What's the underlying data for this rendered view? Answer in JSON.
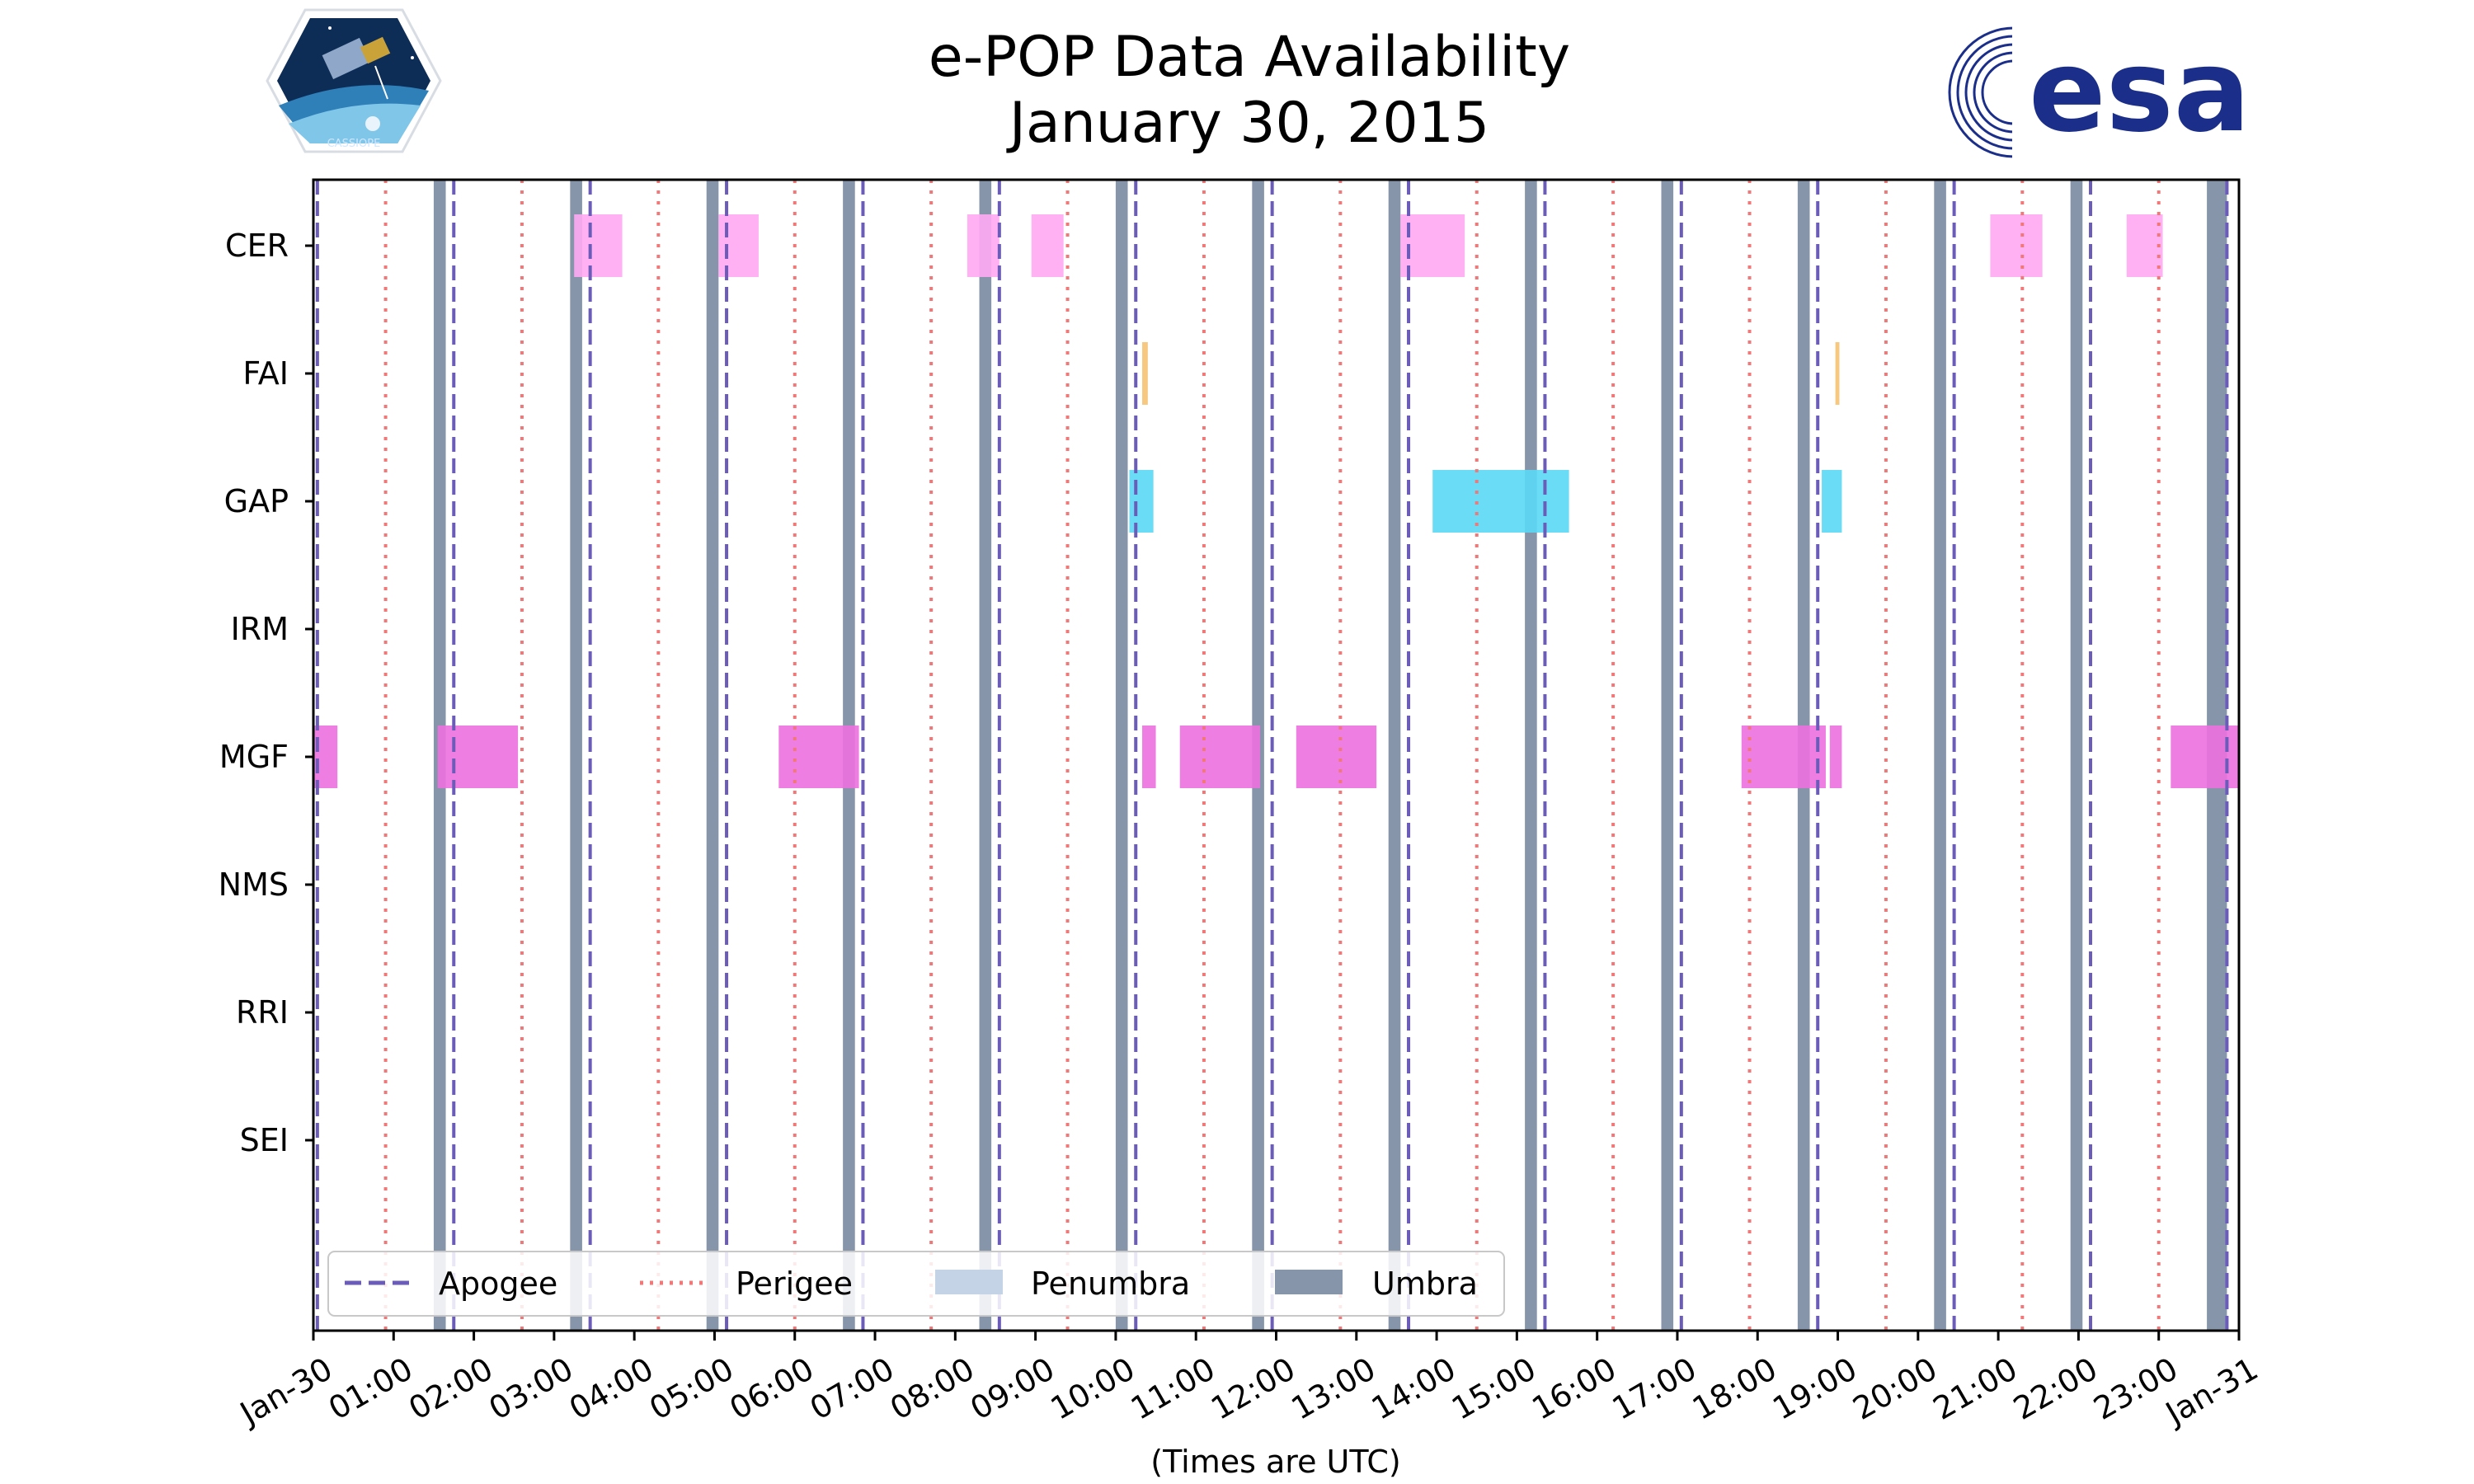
{
  "chart_data": {
    "type": "timeline",
    "title_line1": "e-POP Data Availability",
    "title_line2": "January 30, 2015",
    "xlabel": "(Times are UTC)",
    "x_unit": "hours UTC",
    "xlim": [
      0,
      24
    ],
    "instruments": [
      "CER",
      "FAI",
      "GAP",
      "IRM",
      "MGF",
      "NMS",
      "RRI",
      "SEI"
    ],
    "xtick_labels": [
      "Jan-30",
      "01:00",
      "02:00",
      "03:00",
      "04:00",
      "05:00",
      "06:00",
      "07:00",
      "08:00",
      "09:00",
      "10:00",
      "11:00",
      "12:00",
      "13:00",
      "14:00",
      "15:00",
      "16:00",
      "17:00",
      "18:00",
      "19:00",
      "20:00",
      "21:00",
      "22:00",
      "23:00",
      "Jan-31"
    ],
    "apogee_hours": [
      0.05,
      1.75,
      3.45,
      5.15,
      6.85,
      8.55,
      10.25,
      11.95,
      13.65,
      15.35,
      17.05,
      18.75,
      20.45,
      22.15,
      23.85
    ],
    "perigee_hours": [
      0.9,
      2.6,
      4.3,
      6.0,
      7.7,
      9.4,
      11.1,
      12.8,
      14.5,
      16.2,
      17.9,
      19.6,
      21.3,
      23.0
    ],
    "umbra_intervals": [
      [
        1.5,
        1.65
      ],
      [
        3.2,
        3.35
      ],
      [
        4.9,
        5.05
      ],
      [
        6.6,
        6.75
      ],
      [
        8.3,
        8.45
      ],
      [
        10.0,
        10.15
      ],
      [
        11.7,
        11.85
      ],
      [
        13.4,
        13.55
      ],
      [
        15.1,
        15.25
      ],
      [
        16.8,
        16.95
      ],
      [
        18.5,
        18.65
      ],
      [
        20.2,
        20.35
      ],
      [
        21.9,
        22.05
      ],
      [
        23.6,
        23.85
      ]
    ],
    "instrument_intervals": {
      "CER": [
        [
          3.25,
          3.85
        ],
        [
          5.05,
          5.55
        ],
        [
          8.15,
          8.55
        ],
        [
          8.95,
          9.35
        ],
        [
          13.55,
          14.35
        ],
        [
          20.9,
          21.55
        ],
        [
          22.6,
          23.05
        ]
      ],
      "FAI": [
        [
          10.33,
          10.4
        ],
        [
          18.97,
          19.02
        ]
      ],
      "GAP": [
        [
          10.17,
          10.47
        ],
        [
          13.95,
          15.65
        ],
        [
          18.8,
          19.05
        ]
      ],
      "IRM": [],
      "MGF": [
        [
          0.0,
          0.3
        ],
        [
          1.55,
          2.55
        ],
        [
          5.8,
          6.8
        ],
        [
          10.33,
          10.5
        ],
        [
          10.8,
          11.8
        ],
        [
          12.25,
          13.25
        ],
        [
          17.8,
          18.85
        ],
        [
          18.9,
          19.05
        ],
        [
          23.15,
          24.0
        ]
      ],
      "NMS": [],
      "RRI": [],
      "SEI": []
    },
    "instrument_colors": {
      "CER": "#ffa8f3",
      "FAI": "#f6c272",
      "GAP": "#5ad8f5",
      "MGF": "#ec70df"
    },
    "legend": {
      "position": "lower-left",
      "entries": [
        {
          "label": "Apogee",
          "style": "dashed",
          "color": "#6a5cb8"
        },
        {
          "label": "Perigee",
          "style": "dotted",
          "color": "#f07878"
        },
        {
          "label": "Penumbra",
          "style": "patch",
          "color": "#c5d3e6"
        },
        {
          "label": "Umbra",
          "style": "patch",
          "color": "#8795aa"
        }
      ]
    }
  },
  "logos": {
    "left": {
      "name": "CASSIOPE mission badge",
      "text": "CASSIOPE"
    },
    "right": {
      "name": "ESA logo",
      "text": "esa"
    }
  }
}
